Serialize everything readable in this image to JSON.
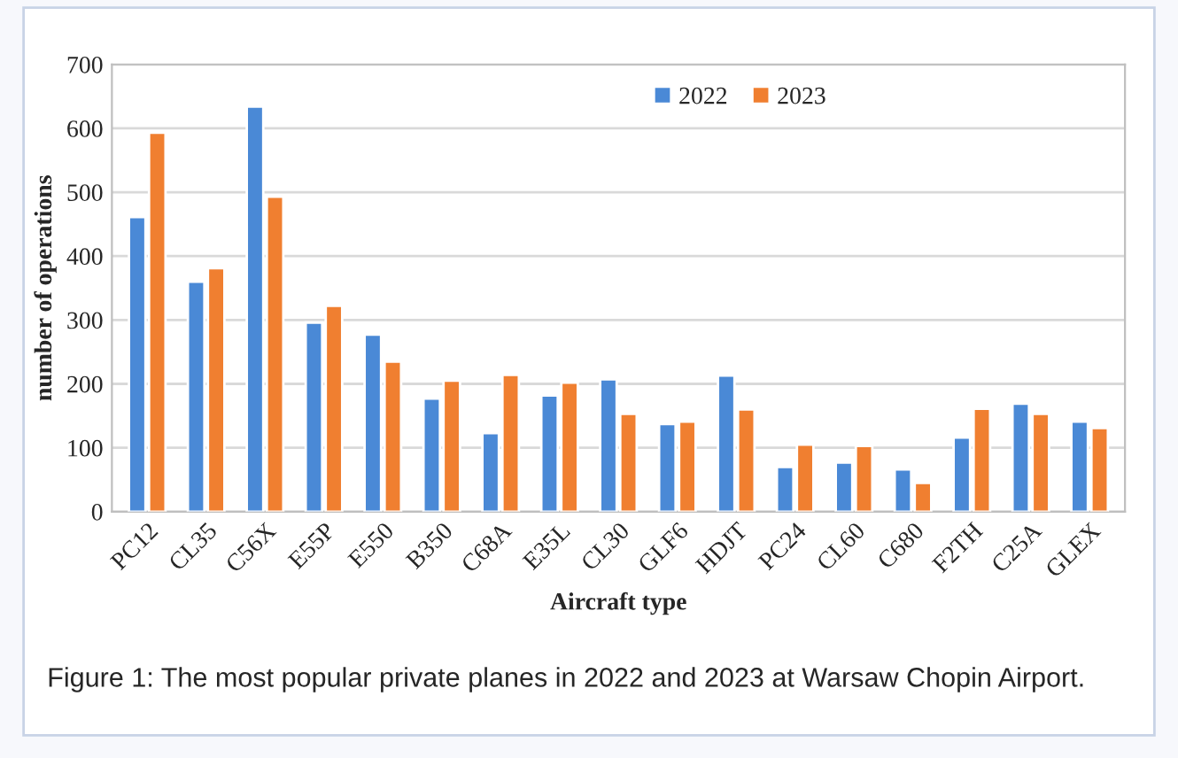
{
  "chart_data": {
    "type": "bar",
    "xlabel": "Aircraft type",
    "ylabel": "number of operations",
    "categories": [
      "PC12",
      "CL35",
      "C56X",
      "E55P",
      "E550",
      "B350",
      "C68A",
      "E35L",
      "CL30",
      "GLF6",
      "HDJT",
      "PC24",
      "CL60",
      "C680",
      "F2TH",
      "C25A",
      "GLEX"
    ],
    "series": [
      {
        "name": "2022",
        "color": "#4a89d6",
        "values": [
          461,
          360,
          634,
          296,
          277,
          177,
          123,
          182,
          207,
          137,
          213,
          70,
          77,
          66,
          116,
          169,
          141
        ]
      },
      {
        "name": "2023",
        "color": "#f07f30",
        "values": [
          593,
          381,
          493,
          322,
          235,
          205,
          214,
          202,
          153,
          141,
          160,
          105,
          103,
          45,
          161,
          153,
          131
        ]
      }
    ],
    "ylim": [
      0,
      700
    ],
    "yticks": [
      0,
      100,
      200,
      300,
      400,
      500,
      600,
      700
    ],
    "grid": "y",
    "legend": "top",
    "annotations": [
      "Figure 1: The most popular private planes in 2022 and 2023 at Warsaw Chopin Airport."
    ]
  }
}
